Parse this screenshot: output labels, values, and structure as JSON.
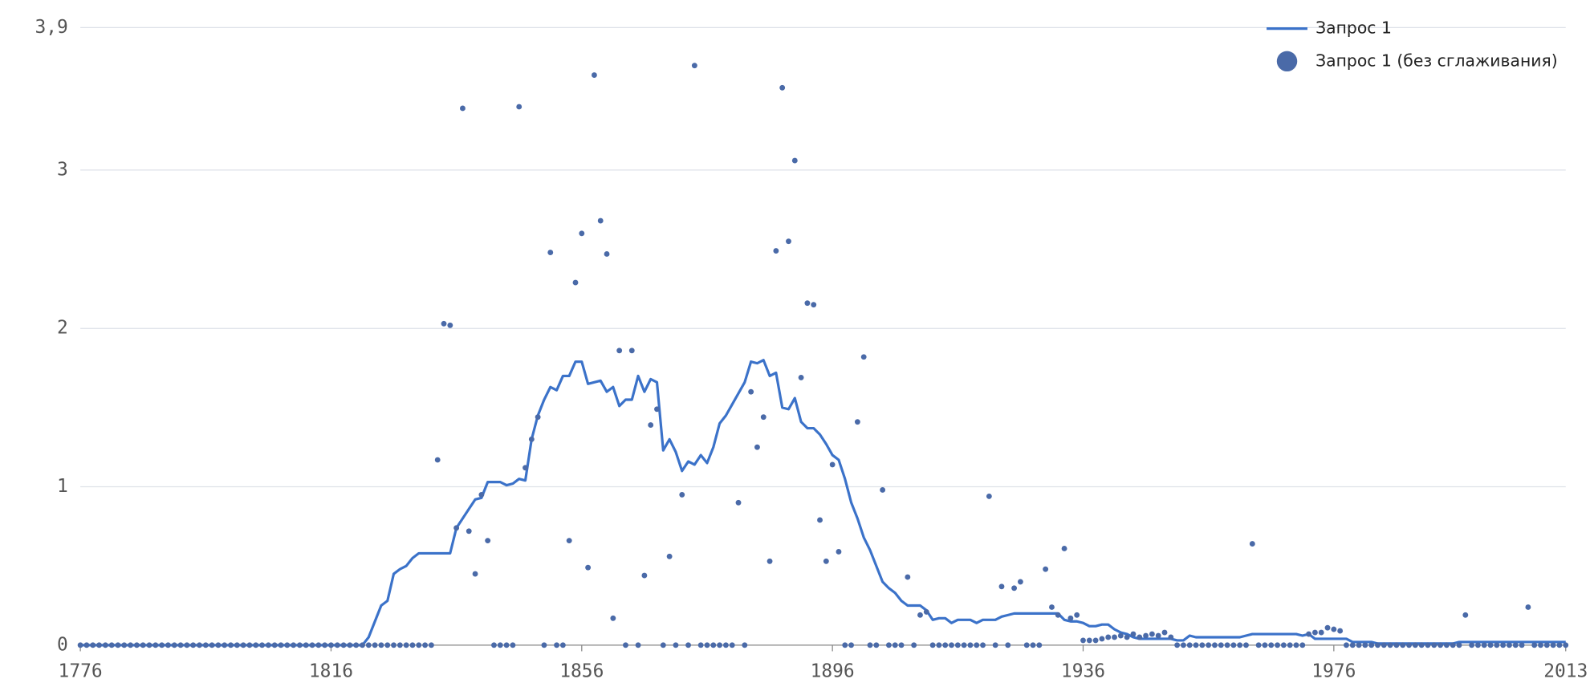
{
  "chart_data": {
    "type": "line",
    "x": [
      1776,
      1777,
      1778,
      1779,
      1780,
      1781,
      1782,
      1783,
      1784,
      1785,
      1786,
      1787,
      1788,
      1789,
      1790,
      1791,
      1792,
      1793,
      1794,
      1795,
      1796,
      1797,
      1798,
      1799,
      1800,
      1801,
      1802,
      1803,
      1804,
      1805,
      1806,
      1807,
      1808,
      1809,
      1810,
      1811,
      1812,
      1813,
      1814,
      1815,
      1816,
      1817,
      1818,
      1819,
      1820,
      1821,
      1822,
      1823,
      1824,
      1825,
      1826,
      1827,
      1828,
      1829,
      1830,
      1831,
      1832,
      1833,
      1834,
      1835,
      1836,
      1837,
      1838,
      1839,
      1840,
      1841,
      1842,
      1843,
      1844,
      1845,
      1846,
      1847,
      1848,
      1849,
      1850,
      1851,
      1852,
      1853,
      1854,
      1855,
      1856,
      1857,
      1858,
      1859,
      1860,
      1861,
      1862,
      1863,
      1864,
      1865,
      1866,
      1867,
      1868,
      1869,
      1870,
      1871,
      1872,
      1873,
      1874,
      1875,
      1876,
      1877,
      1878,
      1879,
      1880,
      1881,
      1882,
      1883,
      1884,
      1885,
      1886,
      1887,
      1888,
      1889,
      1890,
      1891,
      1892,
      1893,
      1894,
      1895,
      1896,
      1897,
      1898,
      1899,
      1900,
      1901,
      1902,
      1903,
      1904,
      1905,
      1906,
      1907,
      1908,
      1909,
      1910,
      1911,
      1912,
      1913,
      1914,
      1915,
      1916,
      1917,
      1918,
      1919,
      1920,
      1921,
      1922,
      1923,
      1924,
      1925,
      1926,
      1927,
      1928,
      1929,
      1930,
      1931,
      1932,
      1933,
      1934,
      1935,
      1936,
      1937,
      1938,
      1939,
      1940,
      1941,
      1942,
      1943,
      1944,
      1945,
      1946,
      1947,
      1948,
      1949,
      1950,
      1951,
      1952,
      1953,
      1954,
      1955,
      1956,
      1957,
      1958,
      1959,
      1960,
      1961,
      1962,
      1963,
      1964,
      1965,
      1966,
      1967,
      1968,
      1969,
      1970,
      1971,
      1972,
      1973,
      1974,
      1975,
      1976,
      1977,
      1978,
      1979,
      1980,
      1981,
      1982,
      1983,
      1984,
      1985,
      1986,
      1987,
      1988,
      1989,
      1990,
      1991,
      1992,
      1993,
      1994,
      1995,
      1996,
      1997,
      1998,
      1999,
      2000,
      2001,
      2002,
      2003,
      2004,
      2005,
      2006,
      2007,
      2008,
      2009,
      2010,
      2011,
      2012,
      2013
    ],
    "series": [
      {
        "name": "Запрос 1",
        "color": "#3b72c9",
        "style": "line",
        "values": [
          0,
          0,
          0,
          0,
          0,
          0,
          0,
          0,
          0,
          0,
          0,
          0,
          0,
          0,
          0,
          0,
          0,
          0,
          0,
          0,
          0,
          0,
          0,
          0,
          0,
          0,
          0,
          0,
          0,
          0,
          0,
          0,
          0,
          0,
          0,
          0,
          0,
          0,
          0,
          0,
          0,
          0,
          0,
          0,
          0,
          0,
          0.05,
          0.15,
          0.25,
          0.28,
          0.45,
          0.48,
          0.5,
          0.55,
          0.58,
          0.58,
          0.58,
          0.58,
          0.58,
          0.58,
          0.74,
          0.8,
          0.86,
          0.92,
          0.93,
          1.03,
          1.03,
          1.03,
          1.01,
          1.02,
          1.05,
          1.04,
          1.3,
          1.45,
          1.55,
          1.63,
          1.61,
          1.7,
          1.7,
          1.79,
          1.79,
          1.65,
          1.66,
          1.67,
          1.6,
          1.63,
          1.51,
          1.55,
          1.55,
          1.7,
          1.6,
          1.68,
          1.66,
          1.23,
          1.3,
          1.22,
          1.1,
          1.16,
          1.14,
          1.2,
          1.15,
          1.25,
          1.4,
          1.45,
          1.52,
          1.59,
          1.66,
          1.79,
          1.78,
          1.8,
          1.7,
          1.72,
          1.5,
          1.49,
          1.56,
          1.41,
          1.37,
          1.37,
          1.33,
          1.27,
          1.2,
          1.17,
          1.05,
          0.9,
          0.8,
          0.68,
          0.6,
          0.5,
          0.4,
          0.36,
          0.33,
          0.28,
          0.25,
          0.25,
          0.25,
          0.22,
          0.16,
          0.17,
          0.17,
          0.14,
          0.16,
          0.16,
          0.16,
          0.14,
          0.16,
          0.16,
          0.16,
          0.18,
          0.19,
          0.2,
          0.2,
          0.2,
          0.2,
          0.2,
          0.2,
          0.2,
          0.2,
          0.16,
          0.15,
          0.15,
          0.14,
          0.12,
          0.12,
          0.13,
          0.13,
          0.1,
          0.08,
          0.07,
          0.05,
          0.04,
          0.04,
          0.04,
          0.04,
          0.04,
          0.04,
          0.03,
          0.03,
          0.06,
          0.05,
          0.05,
          0.05,
          0.05,
          0.05,
          0.05,
          0.05,
          0.05,
          0.06,
          0.07,
          0.07,
          0.07,
          0.07,
          0.07,
          0.07,
          0.07,
          0.07,
          0.06,
          0.07,
          0.04,
          0.04,
          0.04,
          0.04,
          0.04,
          0.04,
          0.02,
          0.02,
          0.02,
          0.02,
          0.01,
          0.01,
          0.01,
          0.01,
          0.01,
          0.01,
          0.01,
          0.01,
          0.01,
          0.01,
          0.01,
          0.01,
          0.01,
          0.02,
          0.02,
          0.02,
          0.02,
          0.02,
          0.02,
          0.02,
          0.02,
          0.02,
          0.02,
          0.02,
          0.02,
          0.02,
          0.02,
          0.02,
          0.02,
          0.02,
          0.02
        ]
      },
      {
        "name": "Запрос 1 (без сглаживания)",
        "color": "#4a6aa8",
        "style": "dots",
        "values": [
          0,
          0,
          0,
          0,
          0,
          0,
          0,
          0,
          0,
          0,
          0,
          0,
          0,
          0,
          0,
          0,
          0,
          0,
          0,
          0,
          0,
          0,
          0,
          0,
          0,
          0,
          0,
          0,
          0,
          0,
          0,
          0,
          0,
          0,
          0,
          0,
          0,
          0,
          0,
          0,
          0,
          0,
          0,
          0,
          0,
          0,
          0,
          0,
          0,
          0,
          0,
          0,
          0,
          0,
          0,
          0,
          0,
          1.17,
          2.03,
          2.02,
          0.74,
          3.39,
          0.72,
          0.45,
          0.95,
          0.66,
          0,
          0,
          0,
          0,
          3.4,
          1.12,
          1.3,
          1.44,
          0,
          2.48,
          0,
          0,
          0.66,
          2.29,
          2.6,
          0.49,
          3.6,
          2.68,
          2.47,
          0.17,
          1.86,
          0,
          1.86,
          0,
          0.44,
          1.39,
          1.49,
          0,
          0.56,
          0,
          0.95,
          0,
          3.66,
          0,
          0,
          0,
          0,
          0,
          0,
          0.9,
          0,
          1.6,
          1.25,
          1.44,
          0.53,
          2.49,
          3.52,
          2.55,
          3.06,
          1.69,
          2.16,
          2.15,
          0.79,
          0.53,
          1.14,
          0.59,
          0,
          0,
          1.41,
          1.82,
          0,
          0,
          0.98,
          0,
          0,
          0,
          0.43,
          0,
          0.19,
          0.21,
          0,
          0,
          0,
          0,
          0,
          0,
          0,
          0,
          0,
          0.94,
          0,
          0.37,
          0,
          0.36,
          0.4,
          0,
          0,
          0,
          0.48,
          0.24,
          0.19,
          0.61,
          0.17,
          0.19,
          0.03,
          0.03,
          0.03,
          0.04,
          0.05,
          0.05,
          0.06,
          0.05,
          0.07,
          0.05,
          0.06,
          0.07,
          0.06,
          0.08,
          0.05,
          0,
          0,
          0,
          0,
          0,
          0,
          0,
          0,
          0,
          0,
          0,
          0,
          0.64,
          0,
          0,
          0,
          0,
          0,
          0,
          0,
          0,
          0.07,
          0.08,
          0.08,
          0.11,
          0.1,
          0.09,
          0,
          0,
          0,
          0,
          0,
          0,
          0,
          0,
          0,
          0,
          0,
          0,
          0,
          0,
          0,
          0,
          0,
          0,
          0,
          0.19,
          0,
          0,
          0,
          0,
          0,
          0,
          0,
          0,
          0,
          0.24,
          0,
          0,
          0,
          0,
          0,
          0
        ]
      }
    ],
    "xlim": [
      1776,
      2013
    ],
    "xticks": [
      1776,
      1816,
      1856,
      1896,
      1936,
      1976,
      2013
    ],
    "ylim": [
      0,
      3.9
    ],
    "yticks": [
      0,
      1,
      2,
      3,
      {
        "value": 3.9,
        "label": "3,9"
      }
    ],
    "grid": true,
    "legend": "top-right"
  }
}
